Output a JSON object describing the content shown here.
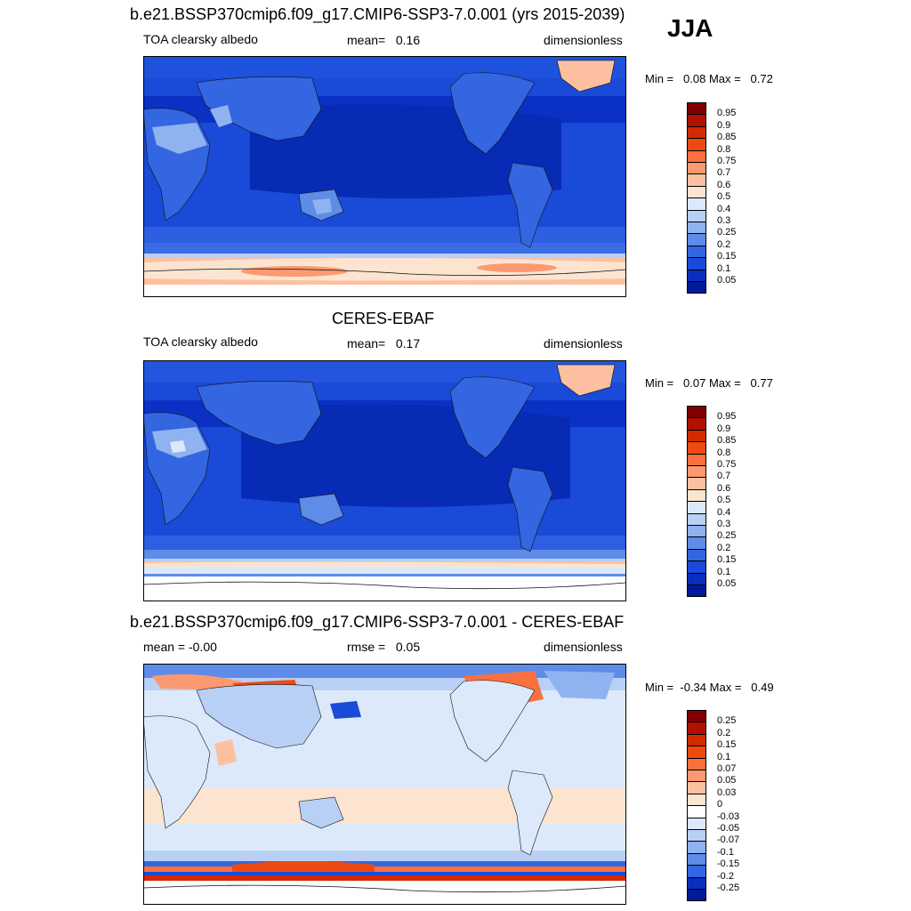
{
  "season": "JJA",
  "panels": [
    {
      "title": "b.e21.BSSP370cmip6.f09_g17.CMIP6-SSP3-7.0.001 (yrs 2015-2039)",
      "left": "TOA clearsky albedo",
      "center_label": "mean=",
      "center_value": "0.16",
      "right": "dimensionless",
      "min_label": "Min =",
      "min_value": "0.08",
      "max_label": "Max =",
      "max_value": "0.72",
      "colorbar": {
        "labels": [
          "0.95",
          "0.9",
          "0.85",
          "0.8",
          "0.75",
          "0.7",
          "0.6",
          "0.5",
          "0.4",
          "0.3",
          "0.25",
          "0.2",
          "0.15",
          "0.1",
          "0.05"
        ],
        "colors": [
          "#800000",
          "#b01000",
          "#d42a00",
          "#ee4a10",
          "#fa7040",
          "#fb9a70",
          "#fcc0a0",
          "#fde4d0",
          "#dce9fa",
          "#b8d0f6",
          "#8fb3f0",
          "#5f8ce8",
          "#3366e0",
          "#1a4ad8",
          "#0a2fbf",
          "#001a99"
        ]
      }
    },
    {
      "title": "CERES-EBAF",
      "left": "TOA clearsky albedo",
      "center_label": "mean=",
      "center_value": "0.17",
      "right": "dimensionless",
      "min_label": "Min =",
      "min_value": "0.07",
      "max_label": "Max =",
      "max_value": "0.77",
      "colorbar": {
        "labels": [
          "0.95",
          "0.9",
          "0.85",
          "0.8",
          "0.75",
          "0.7",
          "0.6",
          "0.5",
          "0.4",
          "0.3",
          "0.25",
          "0.2",
          "0.15",
          "0.1",
          "0.05"
        ],
        "colors": [
          "#800000",
          "#b01000",
          "#d42a00",
          "#ee4a10",
          "#fa7040",
          "#fb9a70",
          "#fcc0a0",
          "#fde4d0",
          "#dce9fa",
          "#b8d0f6",
          "#8fb3f0",
          "#5f8ce8",
          "#3366e0",
          "#1a4ad8",
          "#0a2fbf",
          "#001a99"
        ]
      }
    },
    {
      "title": "b.e21.BSSP370cmip6.f09_g17.CMIP6-SSP3-7.0.001 - CERES-EBAF",
      "left": "mean =  -0.00",
      "center_label": "rmse =",
      "center_value": "0.05",
      "right": "dimensionless",
      "min_label": "Min =",
      "min_value": "-0.34",
      "max_label": "Max =",
      "max_value": "0.49",
      "colorbar": {
        "labels": [
          "0.25",
          "0.2",
          "0.15",
          "0.1",
          "0.07",
          "0.05",
          "0.03",
          "0",
          "-0.03",
          "-0.05",
          "-0.07",
          "-0.1",
          "-0.15",
          "-0.2",
          "-0.25"
        ],
        "colors": [
          "#800000",
          "#b01000",
          "#d42a00",
          "#ee4a10",
          "#fa7040",
          "#fb9a70",
          "#fcc0a0",
          "#fde4d0",
          "#ffffff",
          "#dce9fa",
          "#b8d0f6",
          "#8fb3f0",
          "#5f8ce8",
          "#3366e0",
          "#0a2fbf",
          "#001a99"
        ]
      }
    }
  ]
}
